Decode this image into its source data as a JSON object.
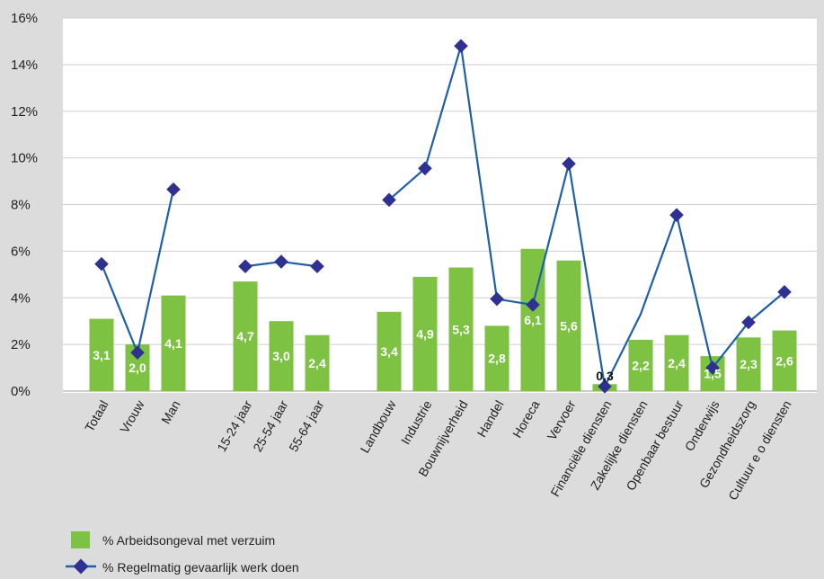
{
  "chart_data": {
    "type": "bar",
    "categories": [
      "Totaal",
      "Vrouw",
      "Man",
      "",
      "15-24 jaar",
      "25-54 jaar",
      "55-64 jaar",
      "",
      "Landbouw",
      "Industrie",
      "Bouwnijverheid",
      "Handel",
      "Horeca",
      "Vervoer",
      "Financiële diensten",
      "Zakelijke diensten",
      "Openbaar bestuur",
      "Onderwijs",
      "Gezondheidszorg",
      "Cultuur e o  diensten"
    ],
    "series": [
      {
        "name": "% Arbeidsongeval met verzuim",
        "kind": "bar",
        "color": "#7dc242",
        "values": [
          3.1,
          2.0,
          4.1,
          null,
          4.7,
          3.0,
          2.4,
          null,
          3.4,
          4.9,
          5.3,
          2.8,
          6.1,
          5.6,
          0.3,
          2.2,
          2.4,
          1.5,
          2.3,
          2.6
        ],
        "labels": [
          "3,1",
          "2,0",
          "4,1",
          "",
          "4,7",
          "3,0",
          "2,4",
          "",
          "3,4",
          "4,9",
          "5,3",
          "2,8",
          "6,1",
          "5,6",
          "0,3",
          "2,2",
          "2,4",
          "1,5",
          "2,3",
          "2,6"
        ]
      },
      {
        "name": "% Regelmatig gevaarlijk werk doen",
        "kind": "line",
        "color": "#1f5fa8",
        "marker_color": "#2e3192",
        "values": [
          5.45,
          1.65,
          8.65,
          null,
          5.35,
          5.55,
          5.35,
          null,
          8.2,
          9.55,
          14.8,
          3.95,
          3.7,
          9.75,
          0.2,
          3.3,
          7.55,
          1.0,
          2.95,
          4.25
        ],
        "markers": [
          true,
          true,
          true,
          false,
          true,
          true,
          true,
          false,
          true,
          true,
          true,
          true,
          true,
          true,
          true,
          false,
          true,
          true,
          true,
          true
        ]
      }
    ],
    "y_ticks": [
      "0%",
      "2%",
      "4%",
      "6%",
      "8%",
      "10%",
      "12%",
      "14%",
      "16%"
    ],
    "ylim": [
      0,
      16
    ],
    "grid": true,
    "legend_position": "bottom-left",
    "title": "",
    "xlabel": "",
    "ylabel": ""
  }
}
